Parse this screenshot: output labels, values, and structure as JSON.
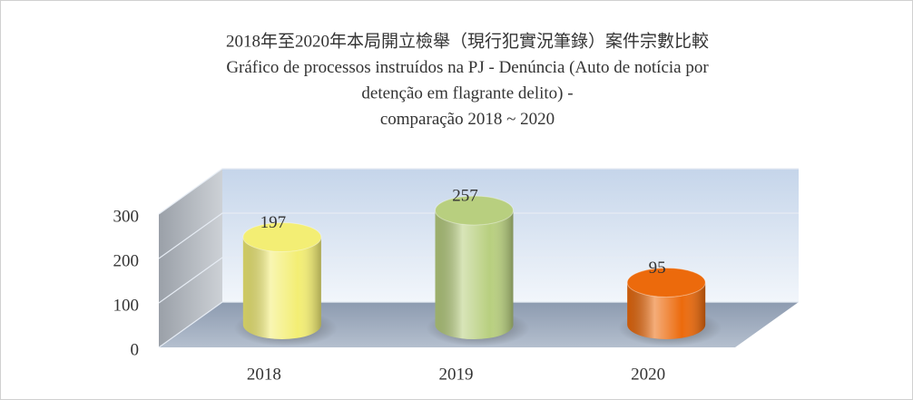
{
  "chart_data": {
    "type": "bar3d",
    "title_lines": [
      "2018年至2020年本局開立檢舉（現行犯實況筆錄）案件宗數比較",
      "Gráfico de processos instruídos na PJ - Denúncia (Auto de notícia por",
      "detenção em flagrante delito) -",
      "comparação 2018 ~ 2020"
    ],
    "categories": [
      "2018",
      "2019",
      "2020"
    ],
    "values": [
      197,
      257,
      95
    ],
    "colors": [
      "#f3ee74",
      "#b8cf7f",
      "#ec6a0c"
    ],
    "ylim": [
      0,
      300
    ],
    "yticks": [
      0,
      100,
      200,
      300
    ],
    "grid": true
  }
}
